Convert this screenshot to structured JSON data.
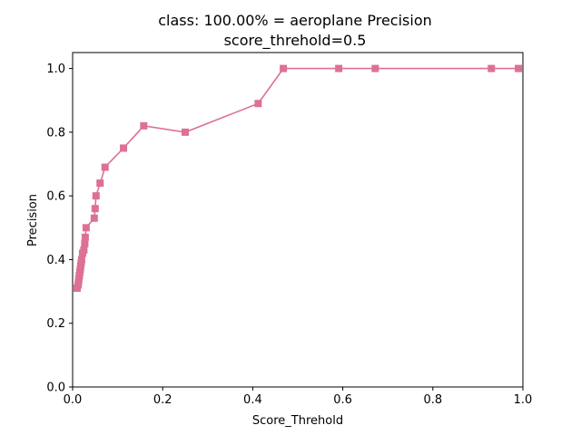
{
  "chart_data": {
    "type": "line",
    "title": "class: 100.00% = aeroplane Precision",
    "subtitle": "score_threhold=0.5",
    "xlabel": "Score_Threhold",
    "ylabel": "Precision",
    "xlim": [
      0.0,
      1.0
    ],
    "ylim": [
      0.0,
      1.05
    ],
    "grid": false,
    "xticks": [
      "0.0",
      "0.2",
      "0.4",
      "0.6",
      "0.8",
      "1.0"
    ],
    "yticks": [
      "0.0",
      "0.2",
      "0.4",
      "0.6",
      "0.8",
      "1.0"
    ],
    "marker": "square",
    "color": "#dd7096",
    "series": [
      {
        "x": [
          0.01,
          0.012,
          0.013,
          0.014,
          0.015,
          0.016,
          0.017,
          0.018,
          0.019,
          0.02,
          0.022,
          0.025,
          0.027,
          0.028,
          0.03,
          0.048,
          0.05,
          0.052,
          0.061,
          0.072,
          0.113,
          0.158,
          0.25,
          0.412,
          0.468,
          0.591,
          0.672,
          0.93,
          0.99
        ],
        "y": [
          0.31,
          0.32,
          0.33,
          0.34,
          0.35,
          0.36,
          0.37,
          0.38,
          0.39,
          0.4,
          0.42,
          0.43,
          0.45,
          0.47,
          0.5,
          0.53,
          0.56,
          0.6,
          0.64,
          0.69,
          0.75,
          0.82,
          0.8,
          0.89,
          1.0,
          1.0,
          1.0,
          1.0,
          1.0
        ]
      }
    ]
  }
}
